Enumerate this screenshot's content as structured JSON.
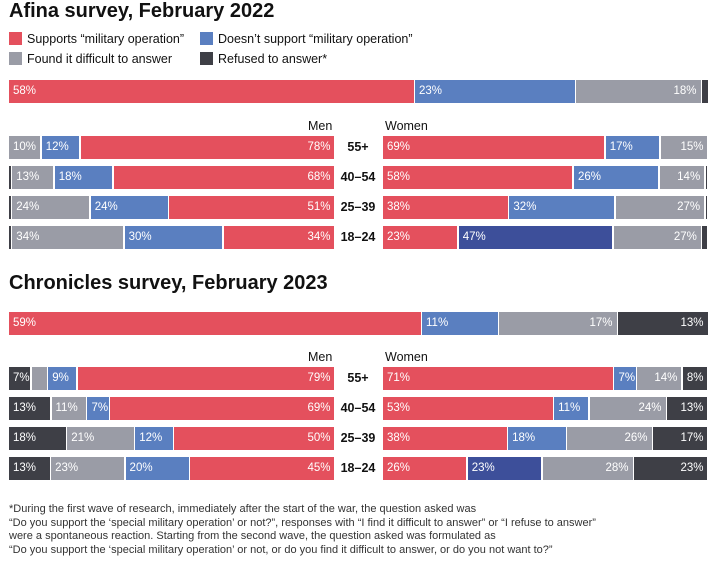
{
  "legend": {
    "supports": "Supports “military operation”",
    "not_supports": "Doesn’t support “military operation”",
    "difficult": "Found it difficult to answer",
    "refused": "Refused to answer*"
  },
  "colors": {
    "supports": "#e4505d",
    "not_supports": "#5a7fc0",
    "not_supports_dark": "#3d4f9a",
    "difficult": "#9a9ca6",
    "refused": "#3e3f46"
  },
  "labels": {
    "men": "Men",
    "women": "Women"
  },
  "footnote": [
    "*During the first wave of research, immediately after the start of the war, the question asked was",
    "“Do you support the ‘special military operation’ or not?”, responses with “I find it difficult to answer” or “I refuse to answer”",
    "were a spontaneous reaction. Starting from the second wave, the question asked was formulated as",
    "“Do you support the ‘special military operation’ or not, or do you find it difficult to answer, or do you not want to?”"
  ],
  "chart_data": [
    {
      "type": "bar",
      "title": "Afina survey, February 2022",
      "categories": [
        "55+",
        "40–54",
        "25–39",
        "18–24"
      ],
      "overall": {
        "supports": 58,
        "not_supports": 23,
        "difficult": 18,
        "refused": 1,
        "labels": {
          "supports": "58%",
          "not_supports": "23%",
          "difficult": "18%",
          "refused": ""
        }
      },
      "men": [
        {
          "supports": 78,
          "not_supports": 12,
          "difficult": 10,
          "refused": 0,
          "labels": {
            "supports": "78%",
            "not_supports": "12%",
            "difficult": "10%",
            "refused": ""
          }
        },
        {
          "supports": 68,
          "not_supports": 18,
          "difficult": 13,
          "refused": 1,
          "labels": {
            "supports": "68%",
            "not_supports": "18%",
            "difficult": "13%",
            "refused": ""
          }
        },
        {
          "supports": 51,
          "not_supports": 24,
          "difficult": 24,
          "refused": 1,
          "labels": {
            "supports": "51%",
            "not_supports": "24%",
            "difficult": "24%",
            "refused": ""
          }
        },
        {
          "supports": 34,
          "not_supports": 30,
          "difficult": 34,
          "refused": 1,
          "labels": {
            "supports": "34%",
            "not_supports": "30%",
            "difficult": "34%",
            "refused": ""
          }
        }
      ],
      "women": [
        {
          "supports": 69,
          "not_supports": 17,
          "difficult": 15,
          "refused": 0,
          "labels": {
            "supports": "69%",
            "not_supports": "17%",
            "difficult": "15%",
            "refused": ""
          }
        },
        {
          "supports": 58,
          "not_supports": 26,
          "difficult": 14,
          "refused": 1,
          "labels": {
            "supports": "58%",
            "not_supports": "26%",
            "difficult": "14%",
            "refused": ""
          }
        },
        {
          "supports": 38,
          "not_supports": 32,
          "difficult": 27,
          "refused": 1,
          "labels": {
            "supports": "38%",
            "not_supports": "32%",
            "difficult": "27%",
            "refused": ""
          }
        },
        {
          "supports": 23,
          "not_supports": 47,
          "difficult": 27,
          "refused": 2,
          "dark_not_supports": true,
          "labels": {
            "supports": "23%",
            "not_supports": "47%",
            "difficult": "27%",
            "refused": ""
          }
        }
      ]
    },
    {
      "type": "bar",
      "title": "Chronicles survey, February 2023",
      "categories": [
        "55+",
        "40–54",
        "25–39",
        "18–24"
      ],
      "overall": {
        "supports": 59,
        "not_supports": 11,
        "difficult": 17,
        "refused": 13,
        "labels": {
          "supports": "59%",
          "not_supports": "11%",
          "difficult": "17%",
          "refused": "13%"
        }
      },
      "men": [
        {
          "supports": 79,
          "not_supports": 9,
          "difficult": 5,
          "refused": 7,
          "labels": {
            "supports": "79%",
            "not_supports": "9%",
            "difficult": "",
            "refused": "7%"
          }
        },
        {
          "supports": 69,
          "not_supports": 7,
          "difficult": 11,
          "refused": 13,
          "labels": {
            "supports": "69%",
            "not_supports": "7%",
            "difficult": "11%",
            "refused": "13%"
          }
        },
        {
          "supports": 50,
          "not_supports": 12,
          "difficult": 21,
          "refused": 18,
          "labels": {
            "supports": "50%",
            "not_supports": "12%",
            "difficult": "21%",
            "refused": "18%"
          }
        },
        {
          "supports": 45,
          "not_supports": 20,
          "difficult": 23,
          "refused": 13,
          "labels": {
            "supports": "45%",
            "not_supports": "20%",
            "difficult": "23%",
            "refused": "13%"
          }
        }
      ],
      "women": [
        {
          "supports": 71,
          "not_supports": 7,
          "difficult": 14,
          "refused": 8,
          "labels": {
            "supports": "71%",
            "not_supports": "7%",
            "difficult": "14%",
            "refused": "8%"
          }
        },
        {
          "supports": 53,
          "not_supports": 11,
          "difficult": 24,
          "refused": 13,
          "labels": {
            "supports": "53%",
            "not_supports": "11%",
            "difficult": "24%",
            "refused": "13%"
          }
        },
        {
          "supports": 38,
          "not_supports": 18,
          "difficult": 26,
          "refused": 17,
          "labels": {
            "supports": "38%",
            "not_supports": "18%",
            "difficult": "26%",
            "refused": "17%"
          }
        },
        {
          "supports": 26,
          "not_supports": 23,
          "difficult": 28,
          "refused": 23,
          "dark_not_supports": true,
          "labels": {
            "supports": "26%",
            "not_supports": "23%",
            "difficult": "28%",
            "refused": "23%"
          }
        }
      ]
    }
  ]
}
